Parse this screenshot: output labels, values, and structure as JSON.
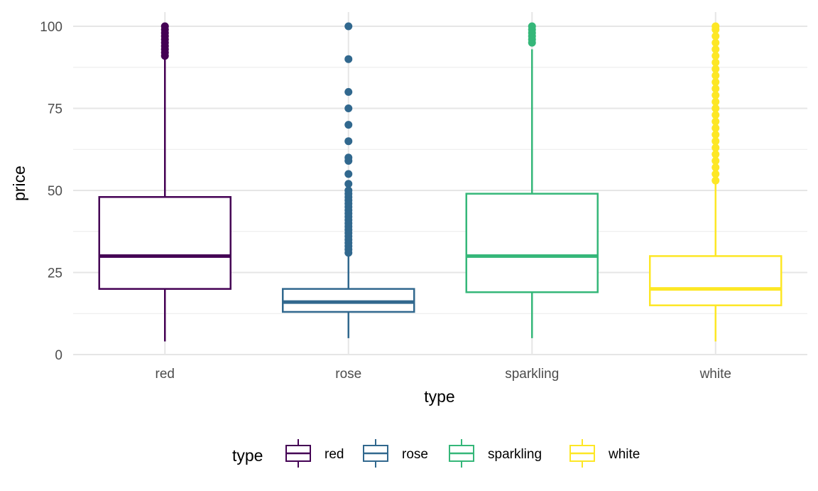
{
  "chart_data": {
    "type": "box",
    "xlabel": "type",
    "ylabel": "price",
    "ylim": [
      0,
      100
    ],
    "y_ticks": [
      0,
      25,
      50,
      75,
      100
    ],
    "grid": true,
    "legend": {
      "title": "type",
      "position": "bottom"
    },
    "categories": [
      "red",
      "rose",
      "sparkling",
      "white"
    ],
    "series": [
      {
        "name": "red",
        "color": "#440154",
        "min": 4,
        "q1": 20,
        "median": 30,
        "q3": 48,
        "max": 91,
        "outliers": [
          91,
          92,
          93,
          94,
          95,
          96,
          97,
          98,
          99,
          100
        ]
      },
      {
        "name": "rose",
        "color": "#31688e",
        "min": 5,
        "q1": 13,
        "median": 16,
        "q3": 20,
        "max": 30,
        "outliers": [
          31,
          32,
          33,
          34,
          35,
          36,
          37,
          38,
          39,
          40,
          41,
          42,
          43,
          44,
          45,
          46,
          47,
          48,
          49,
          50,
          52,
          55,
          59,
          60,
          65,
          70,
          75,
          80,
          90,
          100
        ]
      },
      {
        "name": "sparkling",
        "color": "#35b779",
        "min": 5,
        "q1": 19,
        "median": 30,
        "q3": 49,
        "max": 93,
        "outliers": [
          95,
          96,
          97,
          98,
          99,
          100
        ]
      },
      {
        "name": "white",
        "color": "#fde725",
        "min": 4,
        "q1": 15,
        "median": 20,
        "q3": 30,
        "max": 52,
        "outliers": [
          53,
          55,
          57,
          59,
          61,
          63,
          65,
          67,
          69,
          71,
          73,
          75,
          77,
          79,
          81,
          83,
          85,
          87,
          89,
          91,
          93,
          95,
          97,
          99,
          100
        ]
      }
    ]
  }
}
